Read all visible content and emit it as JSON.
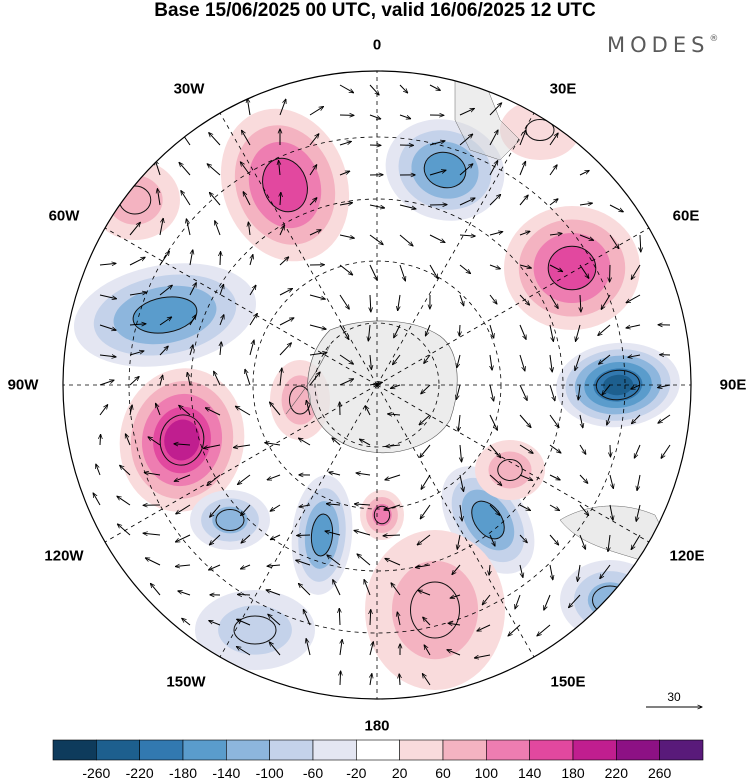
{
  "header": {
    "title": "Base 15/06/2025 00 UTC, valid 16/06/2025 12 UTC",
    "brand": "MODES",
    "brand_mark": "®"
  },
  "map": {
    "projection": "south polar stereographic",
    "center": "South Pole",
    "longitude_labels": {
      "lon_0": "0",
      "lon_30e": "30E",
      "lon_60e": "60E",
      "lon_90e": "90E",
      "lon_120e": "120E",
      "lon_150e": "150E",
      "lon_180": "180",
      "lon_150w": "150W",
      "lon_120w": "120W",
      "lon_90w": "90W",
      "lon_60w": "60W",
      "lon_30w": "30W"
    },
    "graticule": "dashed",
    "fields": {
      "shaded": "anomaly field (diverging blue–pink)",
      "vectors": "wind vectors"
    },
    "reference_vector": {
      "value": "30"
    }
  },
  "colorbar": {
    "tick_labels": [
      "-260",
      "-220",
      "-180",
      "-140",
      "-100",
      "-60",
      "-20",
      "20",
      "60",
      "100",
      "140",
      "180",
      "220",
      "260"
    ],
    "colors": {
      "c0": "#0e3b5c",
      "c1": "#1d5f8e",
      "c2": "#3279b0",
      "c3": "#5a9ccc",
      "c4": "#8db6dd",
      "c5": "#c4d2ea",
      "c6": "#e4e6f2",
      "c7": "#ffffff",
      "c8": "#f9dbdc",
      "c9": "#f4b3c1",
      "c10": "#ee7db1",
      "c11": "#e2489f",
      "c12": "#c01e8f",
      "c13": "#8d1184",
      "c14": "#591a7a"
    }
  }
}
